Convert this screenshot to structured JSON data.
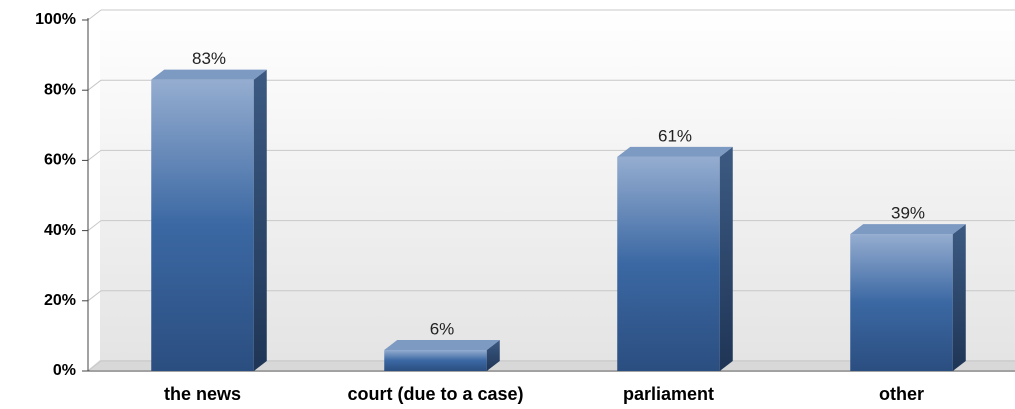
{
  "chart_data": {
    "type": "bar",
    "categories": [
      "the news",
      "court (due to a case)",
      "parliament",
      "other"
    ],
    "values": [
      83,
      6,
      61,
      39
    ],
    "value_labels": [
      "83%",
      "6%",
      "61%",
      "39%"
    ],
    "color": "#3e6aa2",
    "ylim": [
      0,
      100
    ],
    "yticks": [
      {
        "value": 0,
        "label": "0%"
      },
      {
        "value": 20,
        "label": "20%"
      },
      {
        "value": 40,
        "label": "40%"
      },
      {
        "value": 60,
        "label": "60%"
      },
      {
        "value": 80,
        "label": "80%"
      },
      {
        "value": 100,
        "label": "100%"
      }
    ],
    "grid": true
  }
}
